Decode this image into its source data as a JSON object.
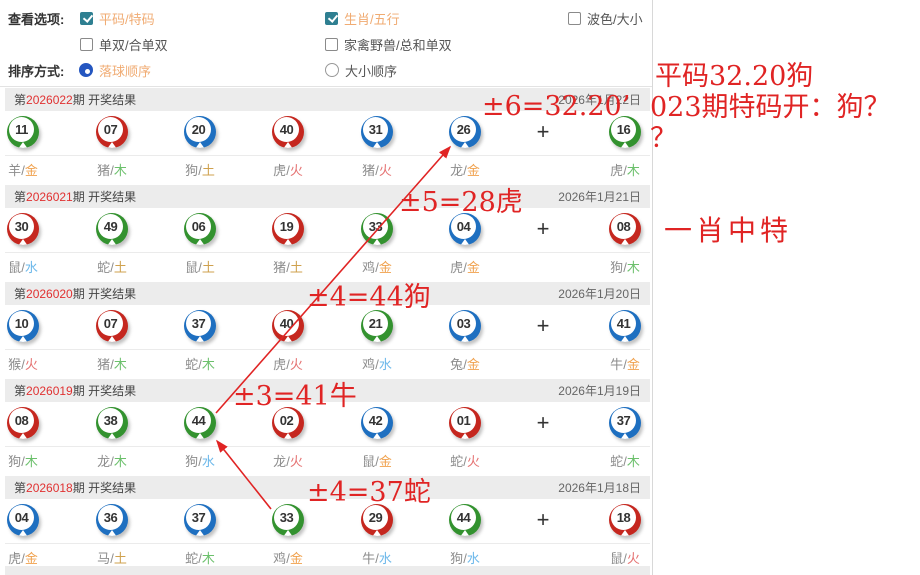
{
  "options": {
    "view_options_label": "查看选项:",
    "sort_label": "排序方式:",
    "opt_pingma": {
      "label": "平码/特码",
      "checked": true
    },
    "opt_shengxiao": {
      "label": "生肖/五行",
      "checked": true
    },
    "opt_bose": {
      "label": "波色/大小",
      "checked": false
    },
    "opt_danshuang": {
      "label": "单双/合单双",
      "checked": false
    },
    "opt_jiaqin": {
      "label": "家禽野兽/总和单双",
      "checked": false
    },
    "radio_luoqiu": {
      "label": "落球顺序",
      "selected": true
    },
    "radio_daxiao": {
      "label": "大小顺序",
      "selected": false
    }
  },
  "lottery": {
    "issue_prefix": "第",
    "issue_suffix": "期 开奖结果",
    "plus_sign": "+",
    "rows": [
      {
        "issue": "2026022",
        "date": "2026年1月22日",
        "balls": [
          {
            "num": "11",
            "color": "green",
            "zodiac": "羊",
            "element": "金"
          },
          {
            "num": "07",
            "color": "red",
            "zodiac": "猪",
            "element": "木"
          },
          {
            "num": "20",
            "color": "blue",
            "zodiac": "狗",
            "element": "土"
          },
          {
            "num": "40",
            "color": "red",
            "zodiac": "虎",
            "element": "火"
          },
          {
            "num": "31",
            "color": "blue",
            "zodiac": "猪",
            "element": "火"
          },
          {
            "num": "26",
            "color": "blue",
            "zodiac": "龙",
            "element": "金"
          }
        ],
        "special": {
          "num": "16",
          "color": "green",
          "zodiac": "虎",
          "element": "木"
        }
      },
      {
        "issue": "2026021",
        "date": "2026年1月21日",
        "balls": [
          {
            "num": "30",
            "color": "red",
            "zodiac": "鼠",
            "element": "水"
          },
          {
            "num": "49",
            "color": "green",
            "zodiac": "蛇",
            "element": "土"
          },
          {
            "num": "06",
            "color": "green",
            "zodiac": "鼠",
            "element": "土"
          },
          {
            "num": "19",
            "color": "red",
            "zodiac": "猪",
            "element": "土"
          },
          {
            "num": "33",
            "color": "green",
            "zodiac": "鸡",
            "element": "金"
          },
          {
            "num": "04",
            "color": "blue",
            "zodiac": "虎",
            "element": "金"
          }
        ],
        "special": {
          "num": "08",
          "color": "red",
          "zodiac": "狗",
          "element": "木"
        }
      },
      {
        "issue": "2026020",
        "date": "2026年1月20日",
        "balls": [
          {
            "num": "10",
            "color": "blue",
            "zodiac": "猴",
            "element": "火"
          },
          {
            "num": "07",
            "color": "red",
            "zodiac": "猪",
            "element": "木"
          },
          {
            "num": "37",
            "color": "blue",
            "zodiac": "蛇",
            "element": "木"
          },
          {
            "num": "40",
            "color": "red",
            "zodiac": "虎",
            "element": "火"
          },
          {
            "num": "21",
            "color": "green",
            "zodiac": "鸡",
            "element": "水"
          },
          {
            "num": "03",
            "color": "blue",
            "zodiac": "兔",
            "element": "金"
          }
        ],
        "special": {
          "num": "41",
          "color": "blue",
          "zodiac": "牛",
          "element": "金"
        }
      },
      {
        "issue": "2026019",
        "date": "2026年1月19日",
        "balls": [
          {
            "num": "08",
            "color": "red",
            "zodiac": "狗",
            "element": "木"
          },
          {
            "num": "38",
            "color": "green",
            "zodiac": "龙",
            "element": "木"
          },
          {
            "num": "44",
            "color": "green",
            "zodiac": "狗",
            "element": "水"
          },
          {
            "num": "02",
            "color": "red",
            "zodiac": "龙",
            "element": "火"
          },
          {
            "num": "42",
            "color": "blue",
            "zodiac": "鼠",
            "element": "金"
          },
          {
            "num": "01",
            "color": "red",
            "zodiac": "蛇",
            "element": "火"
          }
        ],
        "special": {
          "num": "37",
          "color": "blue",
          "zodiac": "蛇",
          "element": "木"
        }
      },
      {
        "issue": "2026018",
        "date": "2026年1月18日",
        "balls": [
          {
            "num": "04",
            "color": "blue",
            "zodiac": "虎",
            "element": "金"
          },
          {
            "num": "36",
            "color": "blue",
            "zodiac": "马",
            "element": "土"
          },
          {
            "num": "37",
            "color": "blue",
            "zodiac": "蛇",
            "element": "木"
          },
          {
            "num": "33",
            "color": "green",
            "zodiac": "鸡",
            "element": "金"
          },
          {
            "num": "29",
            "color": "red",
            "zodiac": "牛",
            "element": "水"
          },
          {
            "num": "44",
            "color": "green",
            "zodiac": "狗",
            "element": "水"
          }
        ],
        "special": {
          "num": "18",
          "color": "red",
          "zodiac": "鼠",
          "element": "火"
        }
      }
    ]
  },
  "annotations": {
    "a1": "±6=32.20’",
    "a2": "±5=28虎",
    "a3": "±4=44狗",
    "a4": "±3=41牛",
    "a5": "±4=37蛇",
    "side1": "平码32.20狗",
    "side2": "023期特码开：狗？",
    "side3": "？",
    "side4": "一肖中特"
  },
  "colors": {
    "ball": {
      "red": "#c5271f",
      "green": "#33922f",
      "blue": "#1e6fc0"
    },
    "element": {
      "金": "#f0a24f",
      "木": "#6cc06c",
      "水": "#6cb8ea",
      "火": "#e57373",
      "土": "#cfa14e"
    },
    "annotation_red": "#e02424",
    "issue_red": "#e03131",
    "checked_label_orange": "#f0ab72",
    "checkbox_teal": "#2e7f91",
    "radio_blue": "#2456c0",
    "header_bar_gray": "#ececec"
  }
}
